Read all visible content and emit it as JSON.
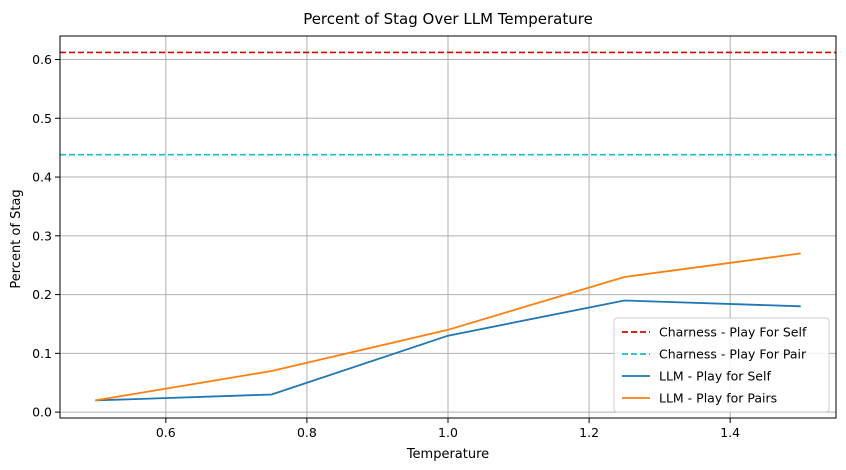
{
  "chart_data": {
    "type": "line",
    "title": "Percent of Stag Over LLM Temperature",
    "xlabel": "Temperature",
    "ylabel": "Percent of Stag",
    "xlim": [
      0.45,
      1.55
    ],
    "ylim": [
      -0.01,
      0.64
    ],
    "xticks": [
      0.6,
      0.8,
      1.0,
      1.2,
      1.4
    ],
    "xtick_labels": [
      "0.6",
      "0.8",
      "1.0",
      "1.2",
      "1.4"
    ],
    "yticks": [
      0.0,
      0.1,
      0.2,
      0.3,
      0.4,
      0.5,
      0.6
    ],
    "ytick_labels": [
      "0.0",
      "0.1",
      "0.2",
      "0.3",
      "0.4",
      "0.5",
      "0.6"
    ],
    "grid": true,
    "legend_position": "lower-right",
    "hlines": [
      {
        "name": "Charness - Play For Self",
        "y": 0.612,
        "color": "#e00000",
        "style": "dashed"
      },
      {
        "name": "Charness - Play For Pair",
        "y": 0.438,
        "color": "#17becf",
        "style": "dashed"
      }
    ],
    "series": [
      {
        "name": "LLM - Play for Self",
        "color": "#1f77b4",
        "x": [
          0.5,
          0.75,
          1.0,
          1.25,
          1.5
        ],
        "y": [
          0.02,
          0.03,
          0.13,
          0.19,
          0.18
        ]
      },
      {
        "name": "LLM - Play for Pairs",
        "color": "#ff7f0e",
        "x": [
          0.5,
          0.75,
          1.0,
          1.25,
          1.5
        ],
        "y": [
          0.02,
          0.07,
          0.14,
          0.23,
          0.27
        ]
      }
    ]
  }
}
